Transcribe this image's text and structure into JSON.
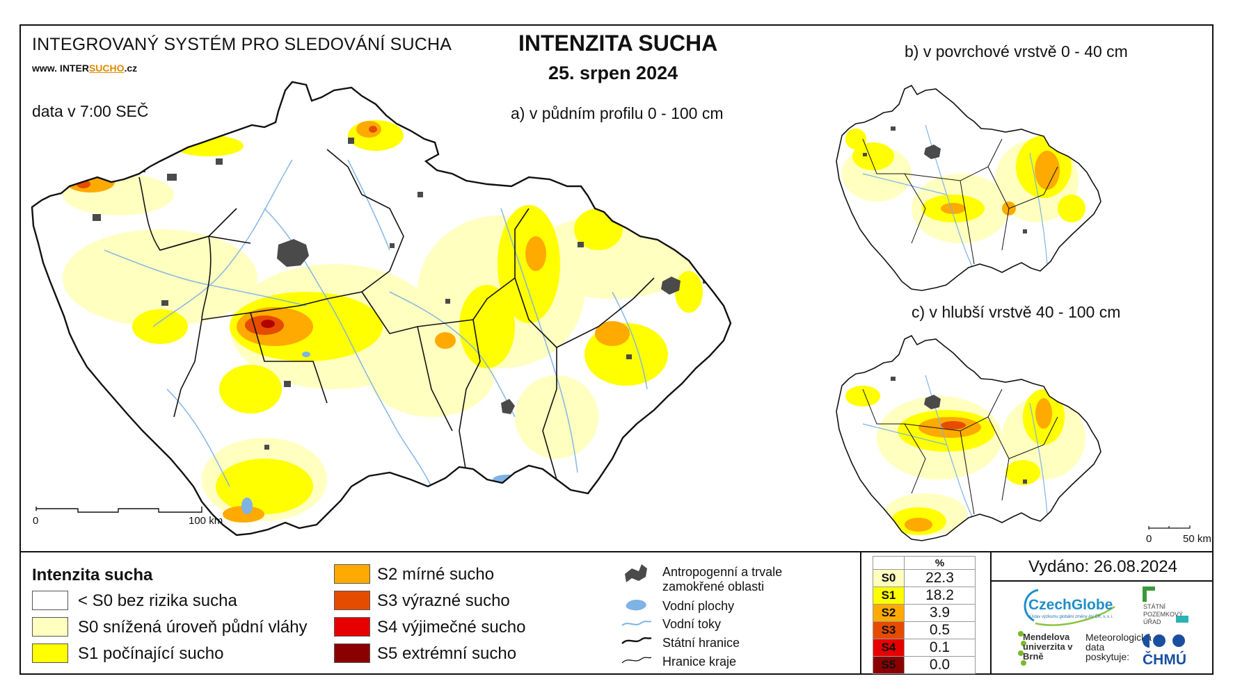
{
  "header": {
    "system_name": "INTEGROVANÝ SYSTÉM PRO SLEDOVÁNÍ SUCHA",
    "website_prefix": "www. INTER",
    "website_accent": "SUCHO",
    "website_suffix": ".cz",
    "data_time": "data v 7:00 SEČ",
    "title": "INTENZITA SUCHA",
    "date": "25. srpen 2024"
  },
  "maps": {
    "main_label": "a) v půdním profilu 0 - 100 cm",
    "surface_label": "b) v povrchové vrstvě 0 - 40 cm",
    "deep_label": "c) v hlubší vrstvě 40 - 100 cm",
    "main_scale": {
      "start": "0",
      "end": "100 km"
    },
    "small_scale": {
      "start": "0",
      "end": "50 km"
    }
  },
  "legend": {
    "title": "Intenzita sucha",
    "classes": [
      {
        "label": "< S0 bez rizika sucha",
        "color": "#ffffff"
      },
      {
        "label": "S0 snížená úroveň půdní vláhy",
        "color": "#ffffc0"
      },
      {
        "label": "S1 počínající sucho",
        "color": "#ffff00"
      },
      {
        "label": "S2 mírné sucho",
        "color": "#ffaa00"
      },
      {
        "label": "S3 výrazné sucho",
        "color": "#e64c00"
      },
      {
        "label": "S4 výjimečné sucho",
        "color": "#e60000"
      },
      {
        "label": "S5 extrémní sucho",
        "color": "#8b0000"
      }
    ],
    "symbols": [
      {
        "icon": "urban-area-icon",
        "label": "Antropogenní a trvale zamokřené oblasti"
      },
      {
        "icon": "water-body-icon",
        "label": "Vodní plochy"
      },
      {
        "icon": "river-icon",
        "label": "Vodní toky"
      },
      {
        "icon": "state-border-icon",
        "label": "Státní hranice"
      },
      {
        "icon": "region-border-icon",
        "label": "Hranice kraje"
      }
    ]
  },
  "percent_table": {
    "header": "%",
    "rows": [
      {
        "cls": "S0",
        "value": "22.3",
        "color": "#ffffc0"
      },
      {
        "cls": "S1",
        "value": "18.2",
        "color": "#ffff00"
      },
      {
        "cls": "S2",
        "value": "3.9",
        "color": "#ffaa00"
      },
      {
        "cls": "S3",
        "value": "0.5",
        "color": "#e64c00"
      },
      {
        "cls": "S4",
        "value": "0.1",
        "color": "#e60000"
      },
      {
        "cls": "S5",
        "value": "0.0",
        "color": "#8b0000"
      }
    ]
  },
  "footer": {
    "issued": "Vydáno: 26.08.2024",
    "czechglobe": "CzechGlobe",
    "czechglobe_sub": "Ústav výzkumu globální změny AV ČR, v. v. i.",
    "spu": "STÁTNÍ POZEMKOVÝ ÚŘAD",
    "mendel": "Mendelova univerzita v Brně",
    "meteo": "Meteorologická data poskytuje:",
    "chmu": "ČHMÚ"
  },
  "colors": {
    "water": "#7fb2e5",
    "urban": "#4a4a4a",
    "border": "#111111"
  }
}
